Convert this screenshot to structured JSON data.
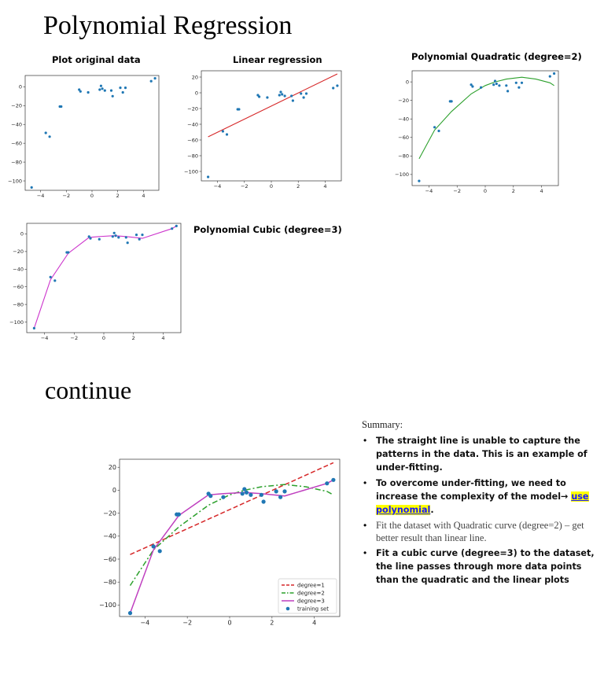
{
  "headings": {
    "main": "Polynomial Regression",
    "continue": "continue"
  },
  "plots": {
    "original": {
      "title": "Plot original data"
    },
    "linear": {
      "title": "Linear regression"
    },
    "quadratic": {
      "title": "Polynomial Quadratic (degree=2)"
    },
    "cubic": {
      "title": "Polynomial Cubic (degree=3)"
    }
  },
  "summary": {
    "heading": "Summary:",
    "bullet1": "The straight line is unable to capture the patterns in the data. This is an example of under-fitting.",
    "bullet2_pre": "To overcome under-fitting, we need to increase the complexity of the model→ ",
    "bullet2_highlight": "use polynomial",
    "bullet2_post": ".",
    "bullet3": "Fit the dataset with Quadratic curve (degree=2) – get better result than linear line.",
    "bullet4": "Fit a cubic curve (degree=3) to the dataset, the line  passes through more data points than the quadratic and the linear plots"
  },
  "chart_data": [
    {
      "type": "scatter",
      "title": "Plot original data",
      "xlim": [
        -5.2,
        5.2
      ],
      "ylim": [
        -110,
        12
      ],
      "xticks": [
        -4,
        -2,
        0,
        2,
        4
      ],
      "yticks": [
        0,
        -20,
        -40,
        -60,
        -80,
        -100
      ],
      "points": [
        [
          -4.7,
          -107
        ],
        [
          -3.6,
          -49
        ],
        [
          -3.3,
          -53
        ],
        [
          -2.5,
          -21
        ],
        [
          -2.4,
          -21
        ],
        [
          -1.0,
          -3
        ],
        [
          -0.9,
          -5
        ],
        [
          -0.3,
          -6
        ],
        [
          0.6,
          -3
        ],
        [
          0.7,
          1
        ],
        [
          0.8,
          -2
        ],
        [
          1.0,
          -4
        ],
        [
          1.5,
          -4
        ],
        [
          1.6,
          -10
        ],
        [
          2.2,
          -1
        ],
        [
          2.4,
          -6
        ],
        [
          2.6,
          -1
        ],
        [
          4.6,
          6
        ],
        [
          4.9,
          9
        ]
      ],
      "colors": {
        "points": "#1f77b4"
      }
    },
    {
      "type": "scatter",
      "title": "Linear regression",
      "xlim": [
        -5.2,
        5.2
      ],
      "ylim": [
        -112,
        28
      ],
      "xticks": [
        -4,
        -2,
        0,
        2,
        4
      ],
      "yticks": [
        20,
        0,
        -20,
        -40,
        -60,
        -80,
        -100
      ],
      "points": [
        [
          -4.7,
          -107
        ],
        [
          -3.6,
          -49
        ],
        [
          -3.3,
          -53
        ],
        [
          -2.5,
          -21
        ],
        [
          -2.4,
          -21
        ],
        [
          -1.0,
          -3
        ],
        [
          -0.9,
          -5
        ],
        [
          -0.3,
          -6
        ],
        [
          0.6,
          -3
        ],
        [
          0.7,
          1
        ],
        [
          0.8,
          -2
        ],
        [
          1.0,
          -4
        ],
        [
          1.5,
          -4
        ],
        [
          1.6,
          -10
        ],
        [
          2.2,
          -1
        ],
        [
          2.4,
          -6
        ],
        [
          2.6,
          -1
        ],
        [
          4.6,
          6
        ],
        [
          4.9,
          9
        ]
      ],
      "series": [
        {
          "values": [
            [
              -4.7,
              -56
            ],
            [
              4.9,
              24
            ]
          ]
        }
      ],
      "colors": {
        "points": "#1f77b4",
        "line": "#d62728"
      }
    },
    {
      "type": "scatter",
      "title": "Polynomial Quadratic (degree=2)",
      "xlim": [
        -5.2,
        5.2
      ],
      "ylim": [
        -112,
        12
      ],
      "xticks": [
        -4,
        -2,
        0,
        2,
        4
      ],
      "yticks": [
        0,
        -20,
        -40,
        -60,
        -80,
        -100
      ],
      "points": [
        [
          -4.7,
          -107
        ],
        [
          -3.6,
          -49
        ],
        [
          -3.3,
          -53
        ],
        [
          -2.5,
          -21
        ],
        [
          -2.4,
          -21
        ],
        [
          -1.0,
          -3
        ],
        [
          -0.9,
          -5
        ],
        [
          -0.3,
          -6
        ],
        [
          0.6,
          -3
        ],
        [
          0.7,
          1
        ],
        [
          0.8,
          -2
        ],
        [
          1.0,
          -4
        ],
        [
          1.5,
          -4
        ],
        [
          1.6,
          -10
        ],
        [
          2.2,
          -1
        ],
        [
          2.4,
          -6
        ],
        [
          2.6,
          -1
        ],
        [
          4.6,
          6
        ],
        [
          4.9,
          9
        ]
      ],
      "series": [
        {
          "values": [
            [
              -4.7,
              -83
            ],
            [
              -3.6,
              -52
            ],
            [
              -2.4,
              -32
            ],
            [
              -1.0,
              -13
            ],
            [
              0.0,
              -4
            ],
            [
              0.7,
              0
            ],
            [
              1.5,
              3
            ],
            [
              2.6,
              5
            ],
            [
              3.6,
              3
            ],
            [
              4.6,
              -1
            ],
            [
              4.9,
              -4
            ]
          ]
        }
      ],
      "colors": {
        "points": "#1f77b4",
        "line": "#2ca02c"
      }
    },
    {
      "type": "scatter",
      "title": "Polynomial Cubic (degree=3)",
      "xlim": [
        -5.2,
        5.2
      ],
      "ylim": [
        -112,
        12
      ],
      "xticks": [
        -4,
        -2,
        0,
        2,
        4
      ],
      "yticks": [
        0,
        -20,
        -40,
        -60,
        -80,
        -100
      ],
      "points": [
        [
          -4.7,
          -107
        ],
        [
          -3.6,
          -49
        ],
        [
          -3.3,
          -53
        ],
        [
          -2.5,
          -21
        ],
        [
          -2.4,
          -21
        ],
        [
          -1.0,
          -3
        ],
        [
          -0.9,
          -5
        ],
        [
          -0.3,
          -6
        ],
        [
          0.6,
          -3
        ],
        [
          0.7,
          1
        ],
        [
          0.8,
          -2
        ],
        [
          1.0,
          -4
        ],
        [
          1.5,
          -4
        ],
        [
          1.6,
          -10
        ],
        [
          2.2,
          -1
        ],
        [
          2.4,
          -6
        ],
        [
          2.6,
          -1
        ],
        [
          4.6,
          6
        ],
        [
          4.9,
          9
        ]
      ],
      "series": [
        {
          "values": [
            [
              -4.7,
              -107
            ],
            [
              -3.6,
              -52
            ],
            [
              -2.4,
              -22
            ],
            [
              -1.0,
              -4
            ],
            [
              -0.3,
              -3
            ],
            [
              0.7,
              -2
            ],
            [
              1.5,
              -3
            ],
            [
              2.6,
              -5
            ],
            [
              4.6,
              6
            ],
            [
              4.9,
              9
            ]
          ]
        }
      ],
      "colors": {
        "points": "#1f77b4",
        "line": "#cc33cc"
      }
    },
    {
      "type": "line",
      "xlim": [
        -5.2,
        5.2
      ],
      "ylim": [
        -110,
        27
      ],
      "xticks": [
        -4,
        -2,
        0,
        2,
        4
      ],
      "yticks": [
        20,
        0,
        -20,
        -40,
        -60,
        -80,
        -100
      ],
      "points": [
        [
          -4.7,
          -107
        ],
        [
          -3.6,
          -49
        ],
        [
          -3.3,
          -53
        ],
        [
          -2.5,
          -21
        ],
        [
          -2.4,
          -21
        ],
        [
          -1.0,
          -3
        ],
        [
          -0.9,
          -5
        ],
        [
          -0.3,
          -6
        ],
        [
          0.6,
          -3
        ],
        [
          0.7,
          1
        ],
        [
          0.8,
          -2
        ],
        [
          1.0,
          -4
        ],
        [
          1.5,
          -4
        ],
        [
          1.6,
          -10
        ],
        [
          2.2,
          -1
        ],
        [
          2.4,
          -6
        ],
        [
          2.6,
          -1
        ],
        [
          4.6,
          6
        ],
        [
          4.9,
          9
        ]
      ],
      "series": [
        {
          "name": "degree=1",
          "style": "dashed",
          "values": [
            [
              -4.7,
              -56
            ],
            [
              4.9,
              24
            ]
          ]
        },
        {
          "name": "degree=2",
          "style": "dashdot",
          "values": [
            [
              -4.7,
              -83
            ],
            [
              -3.6,
              -52
            ],
            [
              -2.4,
              -32
            ],
            [
              -1.0,
              -13
            ],
            [
              0.0,
              -4
            ],
            [
              0.7,
              0
            ],
            [
              1.5,
              3
            ],
            [
              2.6,
              5
            ],
            [
              3.6,
              3
            ],
            [
              4.6,
              -1
            ],
            [
              4.9,
              -4
            ]
          ]
        },
        {
          "name": "degree=3",
          "style": "solid",
          "values": [
            [
              -4.7,
              -107
            ],
            [
              -3.6,
              -52
            ],
            [
              -2.4,
              -22
            ],
            [
              -1.0,
              -4
            ],
            [
              -0.3,
              -3
            ],
            [
              0.7,
              -2
            ],
            [
              1.5,
              -3
            ],
            [
              2.6,
              -5
            ],
            [
              4.6,
              6
            ],
            [
              4.9,
              9
            ]
          ]
        }
      ],
      "scatter_name": "training set",
      "legend": "bottom-right",
      "colors": {
        "points": "#1f77b4",
        "degree=1": "#d62728",
        "degree=2": "#2ca02c",
        "degree=3": "#bf3fbf"
      }
    }
  ]
}
